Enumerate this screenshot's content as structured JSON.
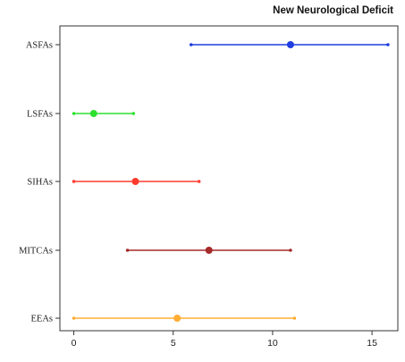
{
  "chart_data": {
    "type": "forest",
    "title": "New Neurological Deficit",
    "xlabel": "",
    "ylabel": "",
    "xlim": [
      -0.7,
      16.3
    ],
    "xticks": [
      0,
      5,
      10,
      15
    ],
    "xtick_labels": [
      "0",
      "5",
      "10",
      "15"
    ],
    "grid": false,
    "categories": [
      "ASFAs",
      "LSFAs",
      "SIHAs",
      "MITCAs",
      "EEAs"
    ],
    "series": [
      {
        "category": "ASFAs",
        "estimate": 10.9,
        "lower": 5.9,
        "upper": 15.8,
        "color": "#1f3de0"
      },
      {
        "category": "LSFAs",
        "estimate": 1.0,
        "lower": 0.0,
        "upper": 3.0,
        "color": "#2ee02e"
      },
      {
        "category": "SIHAs",
        "estimate": 3.1,
        "lower": 0.0,
        "upper": 6.3,
        "color": "#ff3b2e"
      },
      {
        "category": "MITCAs",
        "estimate": 6.8,
        "lower": 2.7,
        "upper": 10.9,
        "color": "#a52a2a"
      },
      {
        "category": "EEAs",
        "estimate": 5.2,
        "lower": 0.0,
        "upper": 11.1,
        "color": "#ffad33"
      }
    ]
  }
}
